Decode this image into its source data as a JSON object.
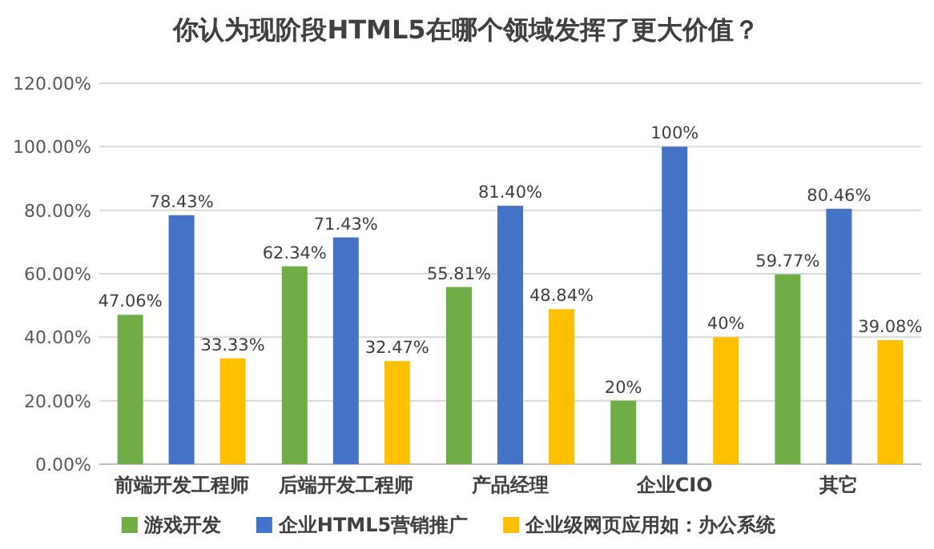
{
  "chart_data": {
    "type": "bar",
    "title": "你认为现阶段HTML5在哪个领域发挥了更大价值？",
    "categories": [
      "前端开发工程师",
      "后端开发工程师",
      "产品经理",
      "企业CIO",
      "其它"
    ],
    "series": [
      {
        "name": "游戏开发",
        "color": "#70ad47",
        "values": [
          47.06,
          62.34,
          55.81,
          20,
          59.77
        ],
        "value_labels": [
          "47.06%",
          "62.34%",
          "55.81%",
          "20%",
          "59.77%"
        ]
      },
      {
        "name": "企业HTML5营销推广",
        "color": "#4472c4",
        "values": [
          78.43,
          71.43,
          81.4,
          100,
          80.46
        ],
        "value_labels": [
          "78.43%",
          "71.43%",
          "81.40%",
          "100%",
          "80.46%"
        ]
      },
      {
        "name": "企业级网页应用如：办公系统",
        "color": "#ffc000",
        "values": [
          33.33,
          32.47,
          48.84,
          40,
          39.08
        ],
        "value_labels": [
          "33.33%",
          "32.47%",
          "48.84%",
          "40%",
          "39.08%"
        ]
      }
    ],
    "ylim": [
      0,
      120
    ],
    "yticks": [
      {
        "value": 0,
        "label": "0.00%"
      },
      {
        "value": 20,
        "label": "20.00%"
      },
      {
        "value": 40,
        "label": "40.00%"
      },
      {
        "value": 60,
        "label": "60.00%"
      },
      {
        "value": 80,
        "label": "80.00%"
      },
      {
        "value": 100,
        "label": "100.00%"
      },
      {
        "value": 120,
        "label": "120.00%"
      }
    ],
    "grid": "y",
    "legend": "bottom"
  }
}
